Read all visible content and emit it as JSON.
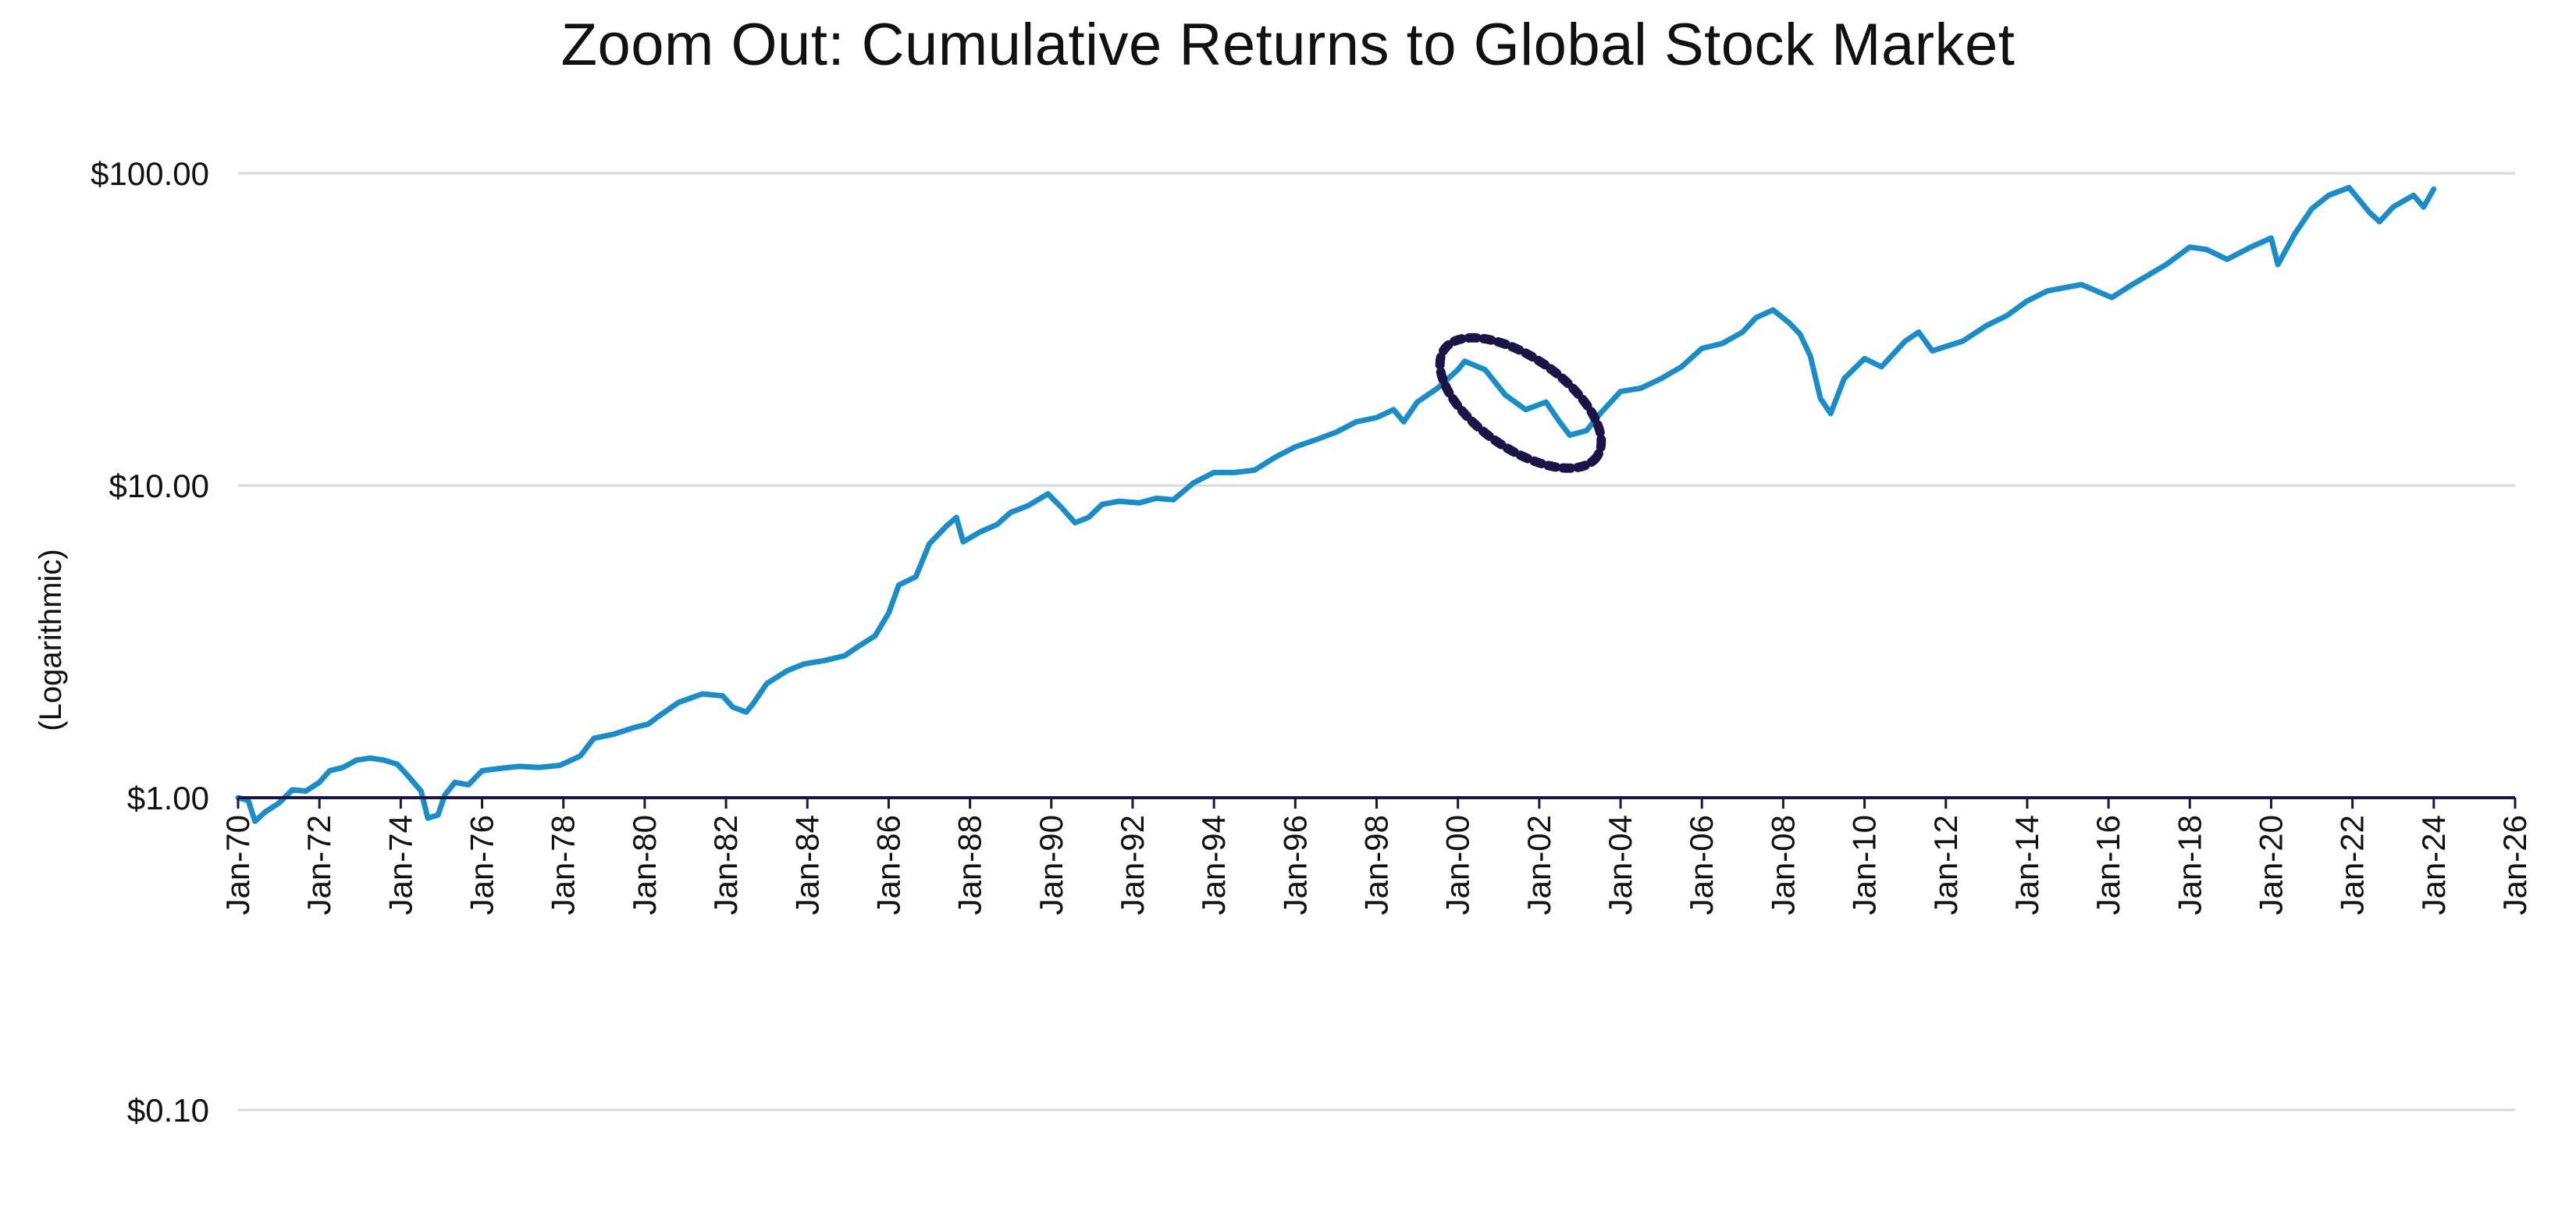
{
  "chart_data": {
    "type": "line",
    "title": "Zoom Out: Cumulative Returns to Global Stock Market",
    "xlabel": "",
    "ylabel": "(Logarithmic)",
    "y_scale": "log",
    "ylim": [
      0.1,
      100
    ],
    "y_ticks": [
      {
        "value": 100,
        "label": "$100.00"
      },
      {
        "value": 10,
        "label": "$10.00"
      },
      {
        "value": 1,
        "label": "$1.00"
      },
      {
        "value": 0.1,
        "label": "$0.10"
      }
    ],
    "xlim": [
      "1970-01",
      "2026-01"
    ],
    "x_ticks": [
      "Jan-70",
      "Jan-72",
      "Jan-74",
      "Jan-76",
      "Jan-78",
      "Jan-80",
      "Jan-82",
      "Jan-84",
      "Jan-86",
      "Jan-88",
      "Jan-90",
      "Jan-92",
      "Jan-94",
      "Jan-96",
      "Jan-98",
      "Jan-00",
      "Jan-02",
      "Jan-04",
      "Jan-06",
      "Jan-08",
      "Jan-10",
      "Jan-12",
      "Jan-14",
      "Jan-16",
      "Jan-18",
      "Jan-20",
      "Jan-22",
      "Jan-24",
      "Jan-26"
    ],
    "grid": "horizontal",
    "legend": "none",
    "series": [
      {
        "color": "#1a8cc8",
        "points": [
          [
            "1970-01",
            1.0
          ],
          [
            "1970-04",
            0.98
          ],
          [
            "1970-06",
            0.84
          ],
          [
            "1970-09",
            0.9
          ],
          [
            "1971-01",
            0.96
          ],
          [
            "1971-05",
            1.06
          ],
          [
            "1971-09",
            1.05
          ],
          [
            "1972-01",
            1.12
          ],
          [
            "1972-04",
            1.22
          ],
          [
            "1972-08",
            1.25
          ],
          [
            "1972-12",
            1.32
          ],
          [
            "1973-04",
            1.34
          ],
          [
            "1973-08",
            1.32
          ],
          [
            "1973-12",
            1.28
          ],
          [
            "1974-03",
            1.18
          ],
          [
            "1974-07",
            1.05
          ],
          [
            "1974-09",
            0.86
          ],
          [
            "1974-12",
            0.88
          ],
          [
            "1975-02",
            1.02
          ],
          [
            "1975-05",
            1.12
          ],
          [
            "1975-09",
            1.1
          ],
          [
            "1976-01",
            1.22
          ],
          [
            "1976-06",
            1.24
          ],
          [
            "1976-12",
            1.26
          ],
          [
            "1977-06",
            1.25
          ],
          [
            "1977-12",
            1.27
          ],
          [
            "1978-06",
            1.36
          ],
          [
            "1978-10",
            1.55
          ],
          [
            "1979-04",
            1.6
          ],
          [
            "1979-10",
            1.68
          ],
          [
            "1980-02",
            1.72
          ],
          [
            "1980-05",
            1.82
          ],
          [
            "1980-11",
            2.02
          ],
          [
            "1981-06",
            2.15
          ],
          [
            "1981-12",
            2.12
          ],
          [
            "1982-03",
            1.95
          ],
          [
            "1982-07",
            1.88
          ],
          [
            "1982-09",
            2.0
          ],
          [
            "1983-01",
            2.32
          ],
          [
            "1983-07",
            2.55
          ],
          [
            "1983-12",
            2.68
          ],
          [
            "1984-06",
            2.75
          ],
          [
            "1984-12",
            2.85
          ],
          [
            "1985-04",
            3.05
          ],
          [
            "1985-09",
            3.3
          ],
          [
            "1986-01",
            3.9
          ],
          [
            "1986-04",
            4.8
          ],
          [
            "1986-09",
            5.1
          ],
          [
            "1987-01",
            6.5
          ],
          [
            "1987-06",
            7.4
          ],
          [
            "1987-09",
            7.9
          ],
          [
            "1987-11",
            6.6
          ],
          [
            "1988-04",
            7.1
          ],
          [
            "1988-09",
            7.5
          ],
          [
            "1989-01",
            8.2
          ],
          [
            "1989-06",
            8.6
          ],
          [
            "1989-12",
            9.4
          ],
          [
            "1990-04",
            8.5
          ],
          [
            "1990-08",
            7.6
          ],
          [
            "1990-12",
            7.9
          ],
          [
            "1991-04",
            8.7
          ],
          [
            "1991-09",
            8.9
          ],
          [
            "1992-03",
            8.8
          ],
          [
            "1992-08",
            9.1
          ],
          [
            "1993-01",
            9.0
          ],
          [
            "1993-07",
            10.2
          ],
          [
            "1994-01",
            11.0
          ],
          [
            "1994-07",
            11.0
          ],
          [
            "1995-01",
            11.2
          ],
          [
            "1995-07",
            12.3
          ],
          [
            "1996-01",
            13.3
          ],
          [
            "1996-07",
            14.0
          ],
          [
            "1997-01",
            14.8
          ],
          [
            "1997-07",
            16.0
          ],
          [
            "1998-01",
            16.5
          ],
          [
            "1998-06",
            17.5
          ],
          [
            "1998-09",
            16.0
          ],
          [
            "1999-01",
            18.5
          ],
          [
            "1999-07",
            20.5
          ],
          [
            "2000-01",
            23.5
          ],
          [
            "2000-03",
            25.0
          ],
          [
            "2000-09",
            23.5
          ],
          [
            "2001-03",
            19.5
          ],
          [
            "2001-09",
            17.5
          ],
          [
            "2002-03",
            18.5
          ],
          [
            "2002-07",
            16.0
          ],
          [
            "2002-10",
            14.5
          ],
          [
            "2003-03",
            15.0
          ],
          [
            "2003-07",
            17.0
          ],
          [
            "2004-01",
            20.0
          ],
          [
            "2004-07",
            20.5
          ],
          [
            "2005-01",
            22.0
          ],
          [
            "2005-07",
            24.0
          ],
          [
            "2006-01",
            27.5
          ],
          [
            "2006-07",
            28.5
          ],
          [
            "2007-01",
            31.0
          ],
          [
            "2007-05",
            34.5
          ],
          [
            "2007-10",
            36.5
          ],
          [
            "2008-03",
            33.0
          ],
          [
            "2008-06",
            30.5
          ],
          [
            "2008-09",
            26.0
          ],
          [
            "2008-12",
            19.0
          ],
          [
            "2009-03",
            17.0
          ],
          [
            "2009-07",
            22.0
          ],
          [
            "2010-01",
            25.5
          ],
          [
            "2010-06",
            24.0
          ],
          [
            "2011-01",
            29.0
          ],
          [
            "2011-05",
            31.0
          ],
          [
            "2011-09",
            27.0
          ],
          [
            "2012-06",
            29.0
          ],
          [
            "2013-01",
            32.5
          ],
          [
            "2013-07",
            35.0
          ],
          [
            "2014-01",
            39.0
          ],
          [
            "2014-07",
            42.0
          ],
          [
            "2015-05",
            44.0
          ],
          [
            "2016-02",
            40.0
          ],
          [
            "2016-08",
            44.0
          ],
          [
            "2017-06",
            51.0
          ],
          [
            "2018-01",
            58.0
          ],
          [
            "2018-06",
            57.0
          ],
          [
            "2018-12",
            53.0
          ],
          [
            "2019-07",
            58.0
          ],
          [
            "2020-01",
            62.0
          ],
          [
            "2020-03",
            51.0
          ],
          [
            "2020-08",
            64.0
          ],
          [
            "2021-01",
            77.0
          ],
          [
            "2021-06",
            85.0
          ],
          [
            "2021-12",
            90.0
          ],
          [
            "2022-06",
            75.0
          ],
          [
            "2022-09",
            70.0
          ],
          [
            "2023-01",
            78.0
          ],
          [
            "2023-07",
            85.0
          ],
          [
            "2023-10",
            78.0
          ],
          [
            "2024-01",
            89.0
          ]
        ]
      }
    ],
    "annotation": {
      "shape": "dotted-ellipse",
      "color": "#1b1446",
      "x_range": [
        "1999-06",
        "2003-09"
      ]
    }
  }
}
